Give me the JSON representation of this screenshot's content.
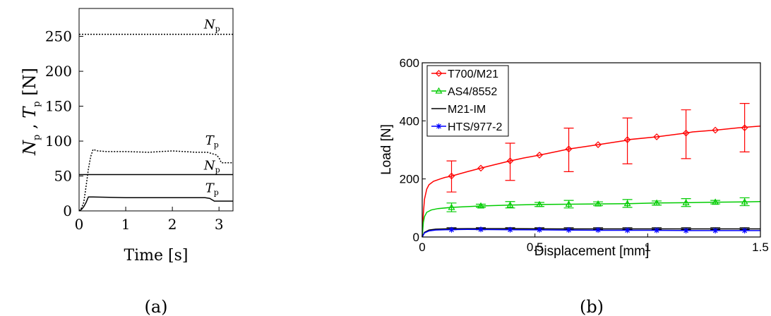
{
  "panels": [
    {
      "caption": "(a)",
      "xlabel": "Time [s]",
      "ylabel": {
        "n_base": "N",
        "n_sub": "p",
        "sep": " , ",
        "t_base": "T",
        "t_sub": "p",
        "unit": " [N]"
      },
      "annotations": [
        {
          "base": "N",
          "sub": "p",
          "x": 2.85,
          "y": 261
        },
        {
          "base": "T",
          "sub": "p",
          "x": 2.85,
          "y": 95
        },
        {
          "base": "N",
          "sub": "p",
          "x": 2.85,
          "y": 59
        },
        {
          "base": "T",
          "sub": "p",
          "x": 2.85,
          "y": 27
        }
      ],
      "xticks": [
        "0",
        "1",
        "2",
        "3"
      ],
      "yticks": [
        "0",
        "50",
        "100",
        "150",
        "200",
        "250"
      ],
      "colors": {
        "axis": "#000000",
        "line": "#000000"
      }
    },
    {
      "caption": "(b)",
      "xlabel": "Displacement [mm]",
      "ylabel": "Load [N]",
      "xticks": [
        "0",
        "0.5",
        "1",
        "1.5"
      ],
      "yticks": [
        "0",
        "200",
        "400",
        "600"
      ],
      "legend_position": "top-left",
      "colors": {
        "axis": "#000000"
      }
    }
  ],
  "chart_data": [
    {
      "type": "line",
      "xlabel": "Time [s]",
      "ylabel": "Np , Tp [N]",
      "xlim": [
        0,
        3.3
      ],
      "ylim": [
        0,
        290
      ],
      "grid": false,
      "series": [
        {
          "style": "dotted",
          "color": "#000000",
          "x": [
            0,
            3.3
          ],
          "y": [
            253,
            253
          ]
        },
        {
          "style": "dotted",
          "color": "#000000",
          "x": [
            0,
            0.05,
            0.1,
            0.15,
            0.2,
            0.25,
            0.3,
            0.4,
            0.6,
            1.0,
            1.5,
            2.0,
            2.5,
            2.75,
            2.85,
            2.95,
            3.0,
            3.05,
            3.3
          ],
          "y": [
            0,
            4,
            12,
            35,
            60,
            78,
            88,
            86,
            85,
            85,
            84,
            86,
            84,
            84,
            82,
            80,
            76,
            69,
            69
          ]
        },
        {
          "style": "solid",
          "color": "#000000",
          "x": [
            0,
            3.3
          ],
          "y": [
            52,
            52
          ]
        },
        {
          "style": "solid",
          "color": "#000000",
          "x": [
            0,
            0.05,
            0.1,
            0.15,
            0.2,
            0.25,
            0.3,
            1.0,
            2.0,
            2.7,
            2.8,
            2.9,
            3.3
          ],
          "y": [
            0,
            2,
            6,
            12,
            20,
            20,
            20,
            19,
            19,
            19,
            18,
            14,
            14
          ]
        }
      ]
    },
    {
      "type": "line",
      "xlabel": "Displacement [mm]",
      "ylabel": "Load [N]",
      "xlim": [
        0,
        1.5
      ],
      "ylim": [
        0,
        600
      ],
      "grid": false,
      "legend": "top-left",
      "series": [
        {
          "name": "T700/M21",
          "color": "#ff0000",
          "marker": "diamond",
          "x": [
            0,
            0.005,
            0.01,
            0.02,
            0.03,
            0.05,
            0.08,
            0.1,
            0.13,
            0.2,
            0.26,
            0.3,
            0.39,
            0.45,
            0.52,
            0.6,
            0.65,
            0.78,
            0.9,
            0.91,
            1.04,
            1.17,
            1.2,
            1.3,
            1.4,
            1.5
          ],
          "y": [
            0,
            80,
            130,
            165,
            180,
            192,
            200,
            205,
            210,
            225,
            237,
            245,
            262,
            272,
            282,
            295,
            303,
            318,
            332,
            335,
            345,
            358,
            362,
            368,
            376,
            382
          ],
          "marker_x": [
            0.13,
            0.26,
            0.39,
            0.52,
            0.65,
            0.78,
            0.91,
            1.04,
            1.17,
            1.3,
            1.43
          ],
          "marker_y": [
            210,
            237,
            262,
            282,
            303,
            318,
            335,
            345,
            358,
            368,
            376
          ],
          "errorbar_x": [
            0.13,
            0.39,
            0.65,
            0.91,
            1.17,
            1.43
          ],
          "errorbar_low": [
            155,
            195,
            225,
            252,
            270,
            293
          ],
          "errorbar_high": [
            262,
            323,
            375,
            410,
            438,
            460
          ]
        },
        {
          "name": "AS4/8552",
          "color": "#00cc00",
          "marker": "triangle",
          "x": [
            0,
            0.005,
            0.01,
            0.02,
            0.04,
            0.07,
            0.13,
            0.26,
            0.39,
            0.52,
            0.65,
            0.78,
            0.91,
            1.04,
            1.17,
            1.3,
            1.43,
            1.5
          ],
          "y": [
            0,
            50,
            70,
            85,
            93,
            98,
            102,
            107,
            110,
            112,
            113,
            114,
            115,
            117,
            118,
            120,
            121,
            122
          ],
          "marker_x": [
            0.13,
            0.26,
            0.39,
            0.52,
            0.65,
            0.78,
            0.91,
            1.04,
            1.17,
            1.3,
            1.43
          ],
          "marker_y": [
            102,
            107,
            110,
            112,
            113,
            114,
            115,
            117,
            118,
            120,
            121
          ],
          "errorbar_x": [
            0.13,
            0.26,
            0.39,
            0.52,
            0.65,
            0.78,
            0.91,
            1.04,
            1.17,
            1.3,
            1.43
          ],
          "errorbar_low": [
            87,
            102,
            100,
            105,
            100,
            108,
            102,
            110,
            105,
            114,
            108
          ],
          "errorbar_high": [
            117,
            113,
            122,
            119,
            126,
            121,
            129,
            124,
            132,
            126,
            135
          ]
        },
        {
          "name": "M21-IM",
          "color": "#000000",
          "marker": "none",
          "x": [
            0,
            0.01,
            0.03,
            0.06,
            0.1,
            0.2,
            0.4,
            0.6,
            0.8,
            1.0,
            1.2,
            1.4,
            1.5
          ],
          "y": [
            0,
            16,
            24,
            27,
            28,
            29,
            29,
            28,
            28,
            28,
            28,
            28,
            28
          ],
          "errorbar_x": [
            0.13,
            0.26,
            0.39,
            0.52,
            0.65,
            0.78,
            0.91,
            1.04,
            1.17,
            1.3,
            1.43
          ],
          "errorbar_low": [
            25,
            25,
            25,
            25,
            25,
            25,
            25,
            25,
            25,
            25,
            25
          ],
          "errorbar_high": [
            32,
            32,
            32,
            32,
            32,
            32,
            32,
            32,
            32,
            32,
            32
          ]
        },
        {
          "name": "HTS/977-2",
          "color": "#0000ff",
          "marker": "star",
          "x": [
            0,
            0.01,
            0.03,
            0.06,
            0.1,
            0.2,
            0.4,
            0.6,
            0.8,
            1.0,
            1.2,
            1.4,
            1.5
          ],
          "y": [
            0,
            14,
            21,
            24,
            25,
            26,
            25,
            24,
            23,
            23,
            22,
            22,
            22
          ],
          "marker_x": [
            0.13,
            0.26,
            0.39,
            0.52,
            0.65,
            0.78,
            0.91,
            1.04,
            1.17,
            1.3,
            1.43
          ],
          "marker_y": [
            25,
            26,
            25,
            25,
            24,
            24,
            23,
            23,
            22,
            22,
            22
          ]
        }
      ]
    }
  ]
}
